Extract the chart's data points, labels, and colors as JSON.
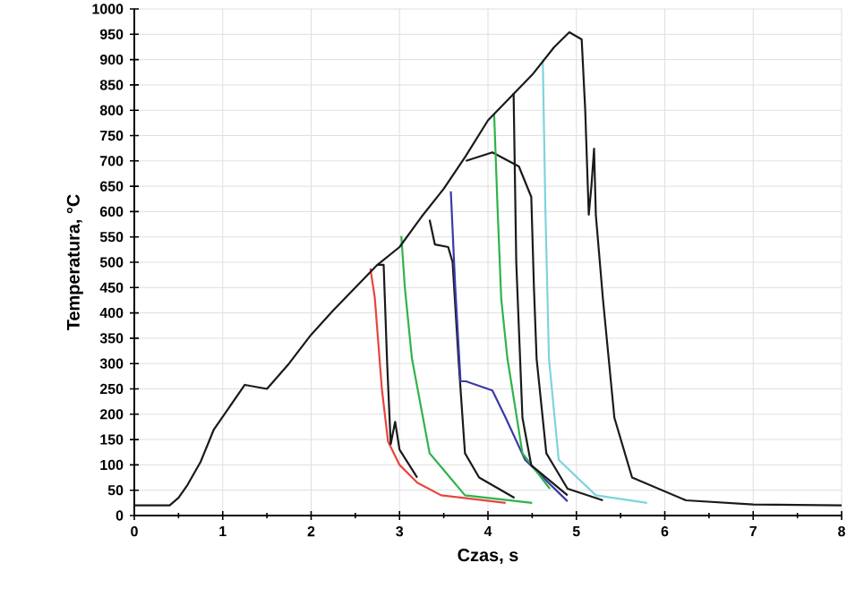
{
  "chart_data": {
    "type": "line",
    "xlabel": "Czas, s",
    "ylabel": "Temperatura, °C",
    "xlim": [
      0,
      8
    ],
    "ylim": [
      0,
      1000
    ],
    "xticks": [
      0,
      1,
      2,
      3,
      4,
      5,
      6,
      7,
      8
    ],
    "yticks": [
      0,
      50,
      100,
      150,
      200,
      250,
      300,
      350,
      400,
      450,
      500,
      550,
      600,
      650,
      700,
      750,
      800,
      850,
      900,
      950,
      1000
    ],
    "grid": true,
    "line_style": "solid",
    "series": [
      {
        "color": "#e8453c",
        "x": [
          2.67,
          2.72,
          2.8,
          2.87,
          3.0,
          3.2,
          3.47,
          4.2
        ],
        "values": [
          488,
          430,
          250,
          146,
          100,
          65,
          40,
          25
        ]
      },
      {
        "color": "#1a1a1a",
        "x": [
          2.75,
          2.82,
          2.86,
          2.9,
          2.95,
          3.0,
          3.2
        ],
        "values": [
          495,
          495,
          300,
          141,
          185,
          130,
          75
        ]
      },
      {
        "color": "#2fb34a",
        "x": [
          3.02,
          3.06,
          3.14,
          3.34,
          3.74,
          4.5
        ],
        "values": [
          552,
          450,
          310,
          123,
          40,
          25
        ]
      },
      {
        "color": "#1a1a1a",
        "x": [
          3.34,
          3.4,
          3.55,
          3.6,
          3.67,
          3.74,
          3.9,
          4.3
        ],
        "values": [
          584,
          535,
          530,
          500,
          300,
          123,
          75,
          35
        ]
      },
      {
        "color": "#3a3aa8",
        "x": [
          3.58,
          3.63,
          3.69,
          3.75,
          4.05,
          4.2,
          4.42,
          4.9
        ],
        "values": [
          640,
          450,
          265,
          265,
          247,
          193,
          110,
          28
        ]
      },
      {
        "color": "#1a1a1a",
        "x": [
          3.75,
          4.05,
          4.35,
          4.49,
          4.52,
          4.55,
          4.66,
          4.9,
          5.3
        ],
        "values": [
          700,
          717,
          689,
          629,
          450,
          310,
          123,
          53,
          30
        ]
      },
      {
        "color": "#2fb34a",
        "x": [
          4.07,
          4.11,
          4.15,
          4.22,
          4.39,
          4.7
        ],
        "values": [
          792,
          600,
          428,
          310,
          123,
          53
        ]
      },
      {
        "color": "#1a1a1a",
        "x": [
          4.29,
          4.32,
          4.39,
          4.49,
          4.9
        ],
        "values": [
          834,
          500,
          193,
          99,
          40
        ]
      },
      {
        "color": "#7fd3dc",
        "x": [
          4.62,
          4.65,
          4.69,
          4.8,
          5.22,
          5.8
        ],
        "values": [
          900,
          600,
          310,
          110,
          40,
          25
        ]
      },
      {
        "color": "#1a1a1a",
        "x": [
          0,
          0.4,
          0.5,
          0.6,
          0.75,
          0.9,
          1.0,
          1.25,
          1.5,
          1.75,
          2.0,
          2.25,
          2.5,
          2.75,
          3.0,
          3.25,
          3.5,
          3.75,
          4.0,
          4.25,
          4.5,
          4.75,
          4.92,
          5.06,
          5.1,
          5.14,
          5.17,
          5.2,
          5.22,
          5.3,
          5.43,
          5.63,
          6.24,
          7,
          8
        ],
        "values": [
          20,
          20,
          35,
          60,
          106,
          170,
          195,
          258,
          250,
          300,
          357,
          405,
          450,
          495,
          530,
          590,
          645,
          710,
          780,
          825,
          870,
          925,
          954,
          940,
          800,
          594,
          650,
          724,
          594,
          428,
          193,
          75,
          30,
          22,
          20
        ]
      }
    ]
  }
}
